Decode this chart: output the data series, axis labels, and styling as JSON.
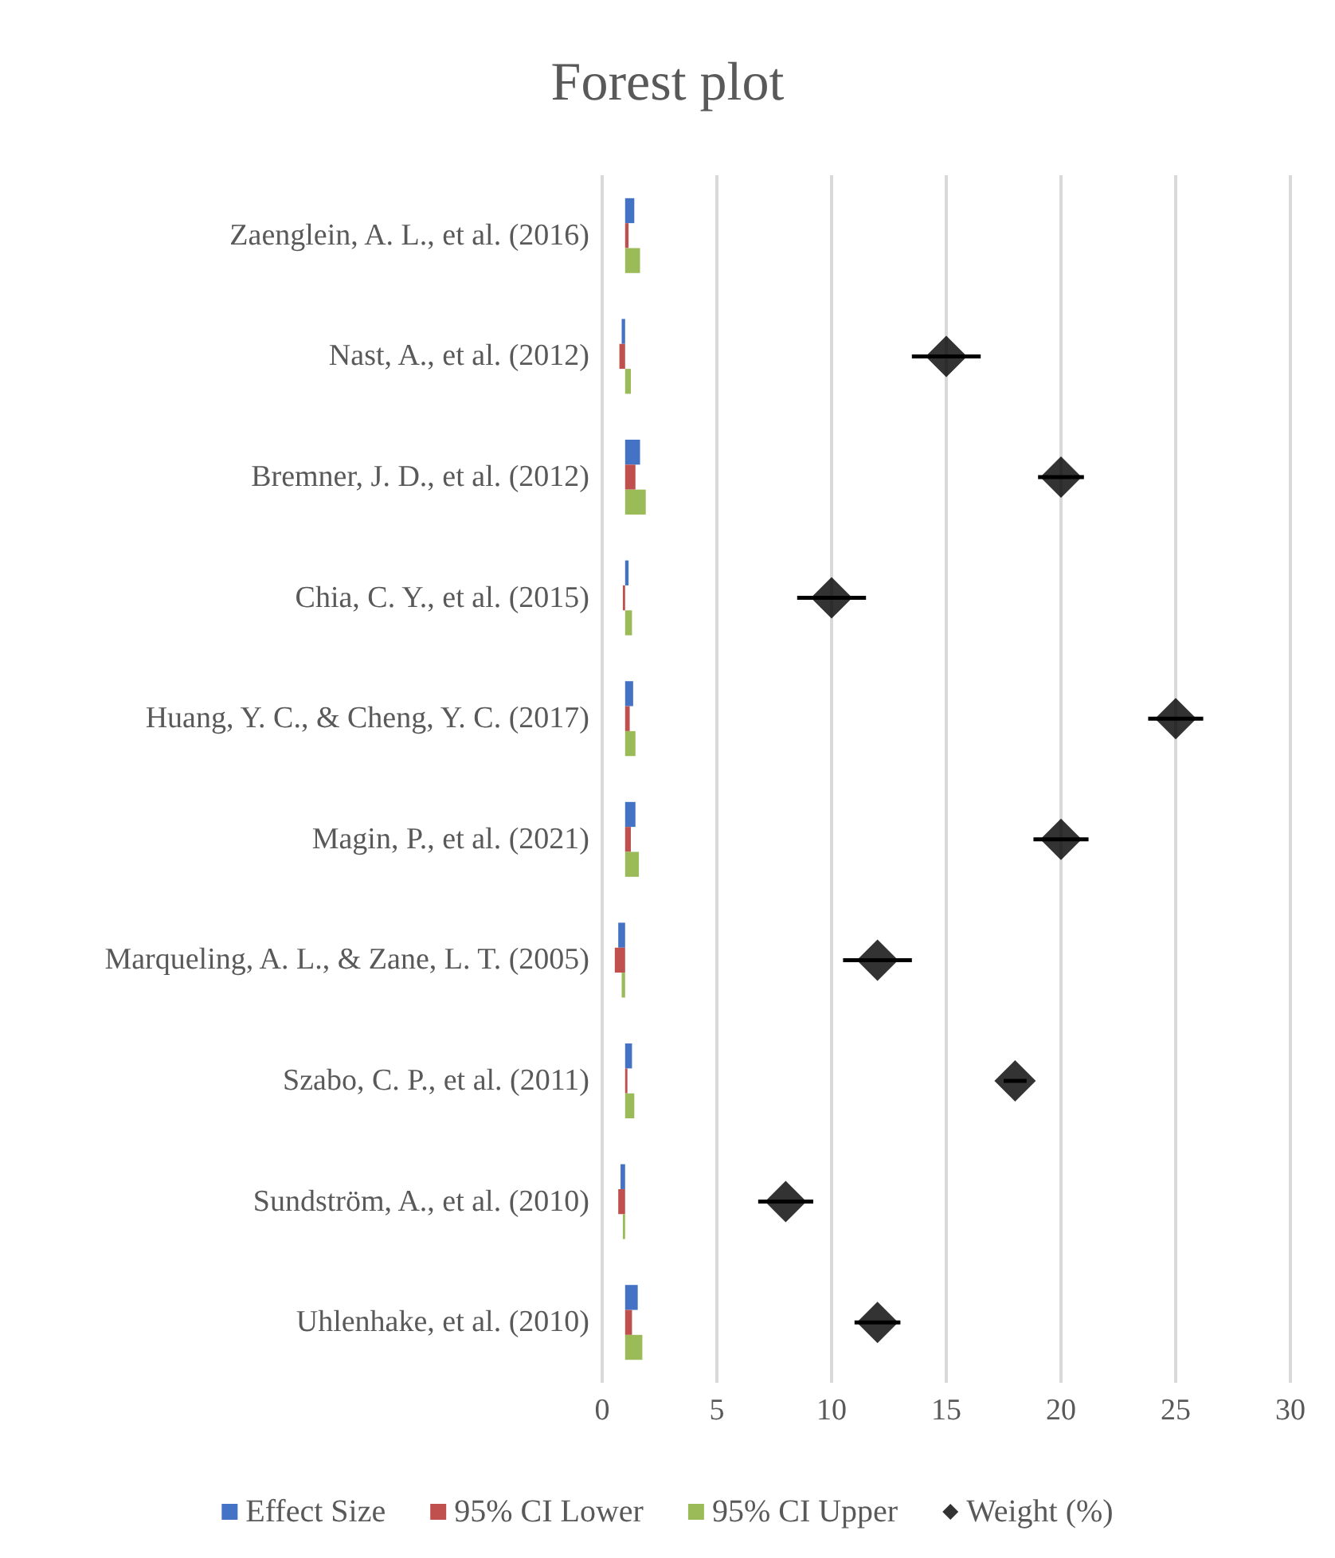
{
  "chart_data": {
    "type": "bar",
    "title": "Forest plot",
    "orientation": "horizontal",
    "categories": [
      "Zaenglein, A. L., et al. (2016)",
      "Nast, A., et al. (2012)",
      "Bremner, J. D., et al. (2012)",
      "Chia, C. Y., et al. (2015)",
      "Huang, Y. C., & Cheng, Y. C. (2017)",
      "Magin, P., et al. (2021)",
      "Marqueling, A. L., & Zane, L. T. (2005)",
      "Szabo, C. P., et al. (2011)",
      "Sundström, A., et al. (2010)",
      "Uhlenhake, et al. (2010)"
    ],
    "series": [
      {
        "name": "Effect Size",
        "color": "#4472c4",
        "base": [
          1,
          1,
          1,
          1,
          1,
          1,
          1,
          1,
          1,
          1
        ],
        "values": [
          0.4,
          -0.15,
          0.65,
          0.15,
          0.35,
          0.45,
          -0.3,
          0.3,
          -0.2,
          0.55
        ]
      },
      {
        "name": "95% CI Lower",
        "color": "#c0504d",
        "base": [
          1,
          1,
          1,
          1,
          1,
          1,
          1,
          1,
          1,
          1
        ],
        "values": [
          0.15,
          -0.25,
          0.45,
          -0.1,
          0.2,
          0.25,
          -0.45,
          0.1,
          -0.3,
          0.3
        ]
      },
      {
        "name": "95% CI Upper",
        "color": "#9bbb59",
        "base": [
          1,
          1,
          1,
          1,
          1,
          1,
          1,
          1,
          1,
          1
        ],
        "values": [
          0.65,
          0.25,
          0.9,
          0.3,
          0.45,
          0.6,
          -0.15,
          0.4,
          -0.1,
          0.75
        ]
      },
      {
        "name": "Weight (%)",
        "type": "scatter",
        "color": "#000000",
        "marker": "diamond",
        "values": [
          null,
          15,
          20,
          10,
          25,
          20,
          12,
          18,
          8,
          12
        ],
        "errors": [
          null,
          1.5,
          1,
          1.5,
          1.2,
          1.2,
          1.5,
          0.5,
          1.2,
          1
        ]
      }
    ],
    "xlim": [
      0,
      30
    ],
    "xticks": [
      0,
      5,
      10,
      15,
      20,
      25,
      30
    ],
    "grid": "x",
    "legend": "bottom"
  }
}
